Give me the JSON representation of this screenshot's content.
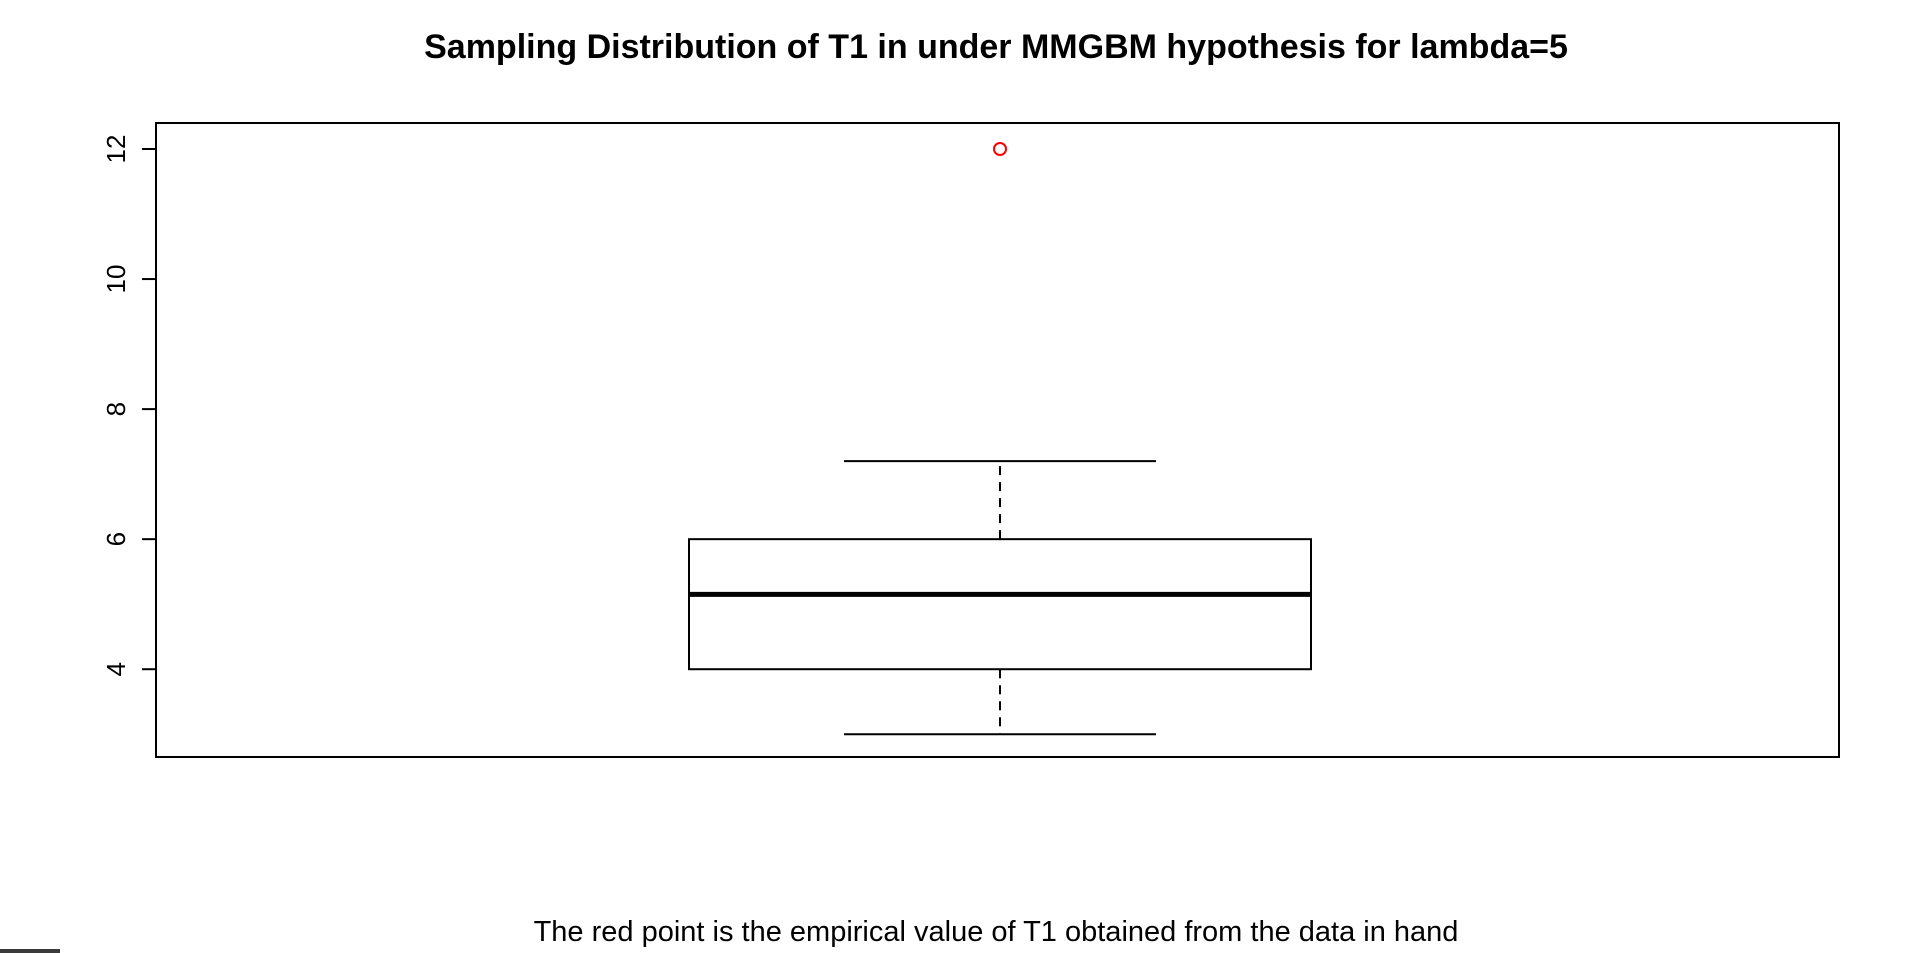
{
  "chart_data": {
    "type": "boxplot",
    "title": "Sampling Distribution of T1 in under MMGBM hypothesis for lambda=5",
    "xlabel": "",
    "ylabel": "",
    "caption": "The red point is the empirical value of T1 obtained from the data in hand",
    "ylim": [
      2.65,
      12.4
    ],
    "y_ticks": [
      4,
      6,
      8,
      10,
      12
    ],
    "grid": false,
    "box": {
      "whisker_low": 3.0,
      "q1": 4.0,
      "median": 5.15,
      "q3": 6.0,
      "whisker_high": 7.2
    },
    "empirical_point": {
      "value": 12.0,
      "color": "#ff0000"
    },
    "colors": {
      "box_line": "#000000",
      "background": "#ffffff"
    }
  }
}
